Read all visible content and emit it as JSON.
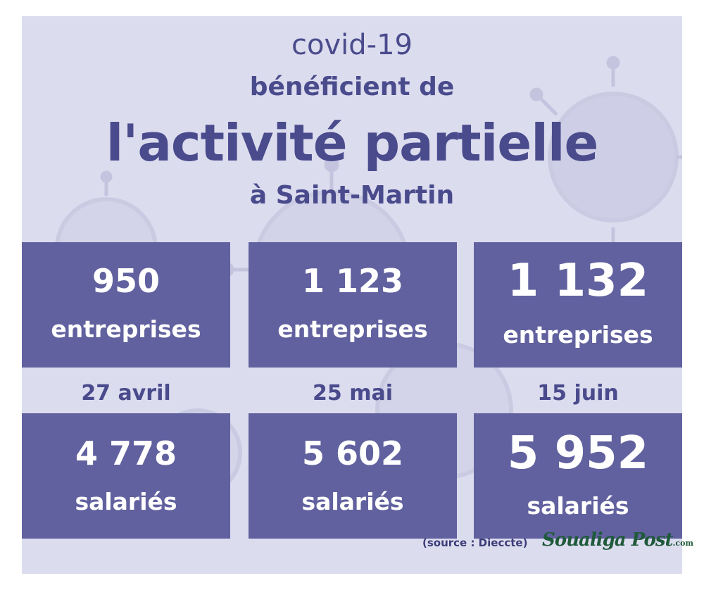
{
  "header": {
    "line1": "covid-19",
    "line2": "bénéficient de",
    "line3": "l'activité partielle",
    "line4": "à Saint-Martin"
  },
  "columns": [
    {
      "entreprises_value": "950",
      "entreprises_label": "entreprises",
      "date": "27 avril",
      "salaries_value": "4 778",
      "salaries_label": "salariés"
    },
    {
      "entreprises_value": "1 123",
      "entreprises_label": "entreprises",
      "date": "25 mai",
      "salaries_value": "5 602",
      "salaries_label": "salariés"
    },
    {
      "entreprises_value": "1 132",
      "entreprises_label": "entreprises",
      "date": "15 juin",
      "salaries_value": "5 952",
      "salaries_label": "salariés"
    }
  ],
  "footer": {
    "source": "(source : Dieccte)",
    "logo_text": "Soualiga Post",
    "logo_suffix": ".com"
  },
  "colors": {
    "background": "#dcdcef",
    "box": "#61619f",
    "title_text": "#4a4b8c",
    "logo": "#1f5a3a"
  }
}
